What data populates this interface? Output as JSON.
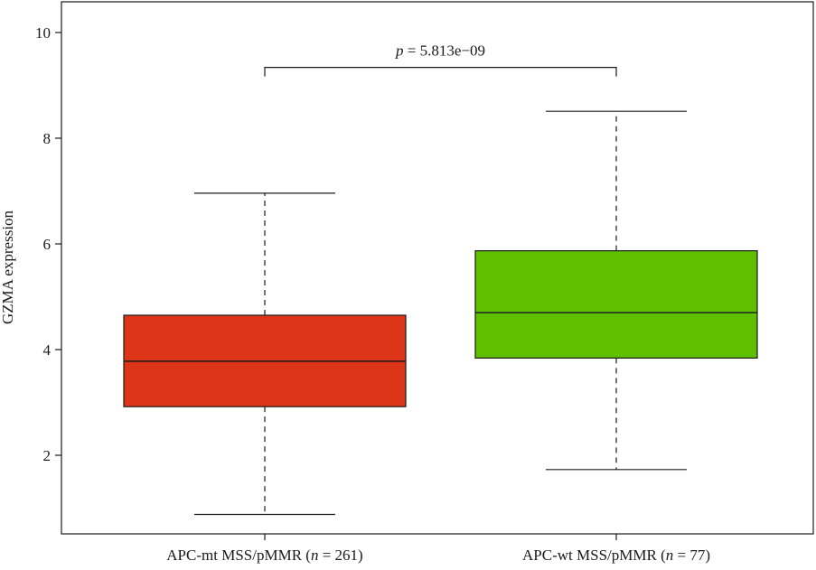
{
  "chart_data": {
    "type": "box",
    "ylabel": "GZMA expression",
    "ylim": [
      0.4,
      10.5
    ],
    "yticks": [
      2,
      4,
      6,
      8,
      10
    ],
    "ytick_labels": [
      "2",
      "4",
      "6",
      "8",
      "10"
    ],
    "grid": false,
    "categories": [
      {
        "prefix": "APC-mt MSS/pMMR (",
        "n_symbol": "n",
        "n_text": " = 261)"
      },
      {
        "prefix": "APC-wt MSS/pMMR (",
        "n_symbol": "n",
        "n_text": " = 77)"
      }
    ],
    "boxes": [
      {
        "whisker_low": 0.88,
        "q1": 2.92,
        "median": 3.78,
        "q3": 4.65,
        "whisker_high": 6.96,
        "color": "#dc3518"
      },
      {
        "whisker_low": 1.73,
        "q1": 3.84,
        "median": 4.7,
        "q3": 5.87,
        "whisker_high": 8.51,
        "color": "#5fc000"
      }
    ],
    "annotation": {
      "p_symbol": "p",
      "p_text": " = 5.813e−09",
      "bracket_y": 9.34
    }
  }
}
